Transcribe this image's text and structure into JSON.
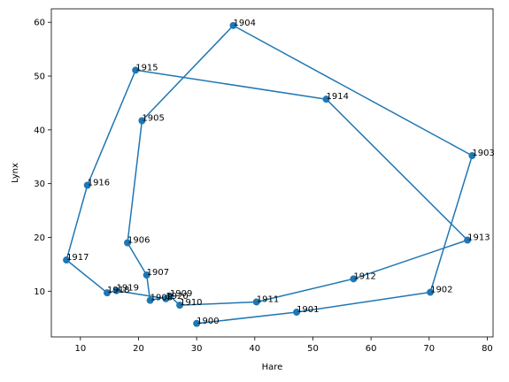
{
  "chart_data": {
    "type": "line",
    "title": "",
    "xlabel": "Hare",
    "ylabel": "Lynx",
    "xlim": [
      5,
      81
    ],
    "ylim": [
      1.5,
      62.5
    ],
    "xticks": [
      10,
      20,
      30,
      40,
      50,
      60,
      70,
      80
    ],
    "yticks": [
      10,
      20,
      30,
      40,
      50,
      60
    ],
    "grid": false,
    "legend": "none",
    "marker": "circle",
    "color": "#1f77b4",
    "points": [
      {
        "label": "1900",
        "x": 30,
        "y": 4
      },
      {
        "label": "1901",
        "x": 47.2,
        "y": 6.1
      },
      {
        "label": "1902",
        "x": 70.2,
        "y": 9.8
      },
      {
        "label": "1903",
        "x": 77.4,
        "y": 35.2
      },
      {
        "label": "1904",
        "x": 36.3,
        "y": 59.4
      },
      {
        "label": "1905",
        "x": 20.6,
        "y": 41.7
      },
      {
        "label": "1906",
        "x": 18.1,
        "y": 19
      },
      {
        "label": "1907",
        "x": 21.4,
        "y": 13
      },
      {
        "label": "1908",
        "x": 22,
        "y": 8.3
      },
      {
        "label": "1909",
        "x": 25.4,
        "y": 9.1
      },
      {
        "label": "1910",
        "x": 27.1,
        "y": 7.4
      },
      {
        "label": "1911",
        "x": 40.3,
        "y": 8
      },
      {
        "label": "1912",
        "x": 57,
        "y": 12.3
      },
      {
        "label": "1913",
        "x": 76.6,
        "y": 19.5
      },
      {
        "label": "1914",
        "x": 52.3,
        "y": 45.7
      },
      {
        "label": "1915",
        "x": 19.5,
        "y": 51.1
      },
      {
        "label": "1916",
        "x": 11.2,
        "y": 29.7
      },
      {
        "label": "1917",
        "x": 7.6,
        "y": 15.8
      },
      {
        "label": "1918",
        "x": 14.6,
        "y": 9.7
      },
      {
        "label": "1919",
        "x": 16.2,
        "y": 10.1
      },
      {
        "label": "1920",
        "x": 24.7,
        "y": 8.6
      }
    ]
  }
}
